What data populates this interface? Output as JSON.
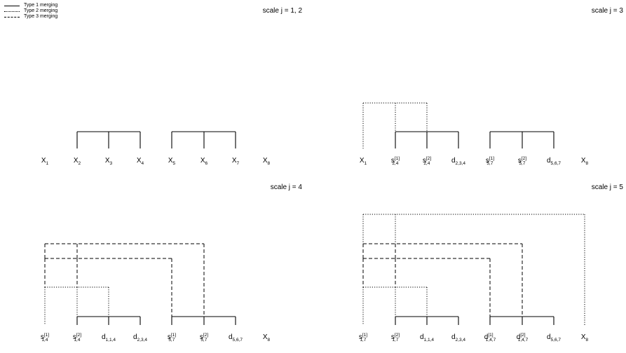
{
  "legend": {
    "items": [
      {
        "label": "Type 1 merging",
        "style": "solid"
      },
      {
        "label": "Type 2 merging",
        "style": "dotted"
      },
      {
        "label": "Type 3 merging",
        "style": "dashed"
      }
    ]
  },
  "panels": [
    {
      "title": "scale j = 1, 2",
      "leaves": [
        {
          "base": "X",
          "sub": "1",
          "sup": ""
        },
        {
          "base": "X",
          "sub": "2",
          "sup": ""
        },
        {
          "base": "X",
          "sub": "3",
          "sup": ""
        },
        {
          "base": "X",
          "sub": "4",
          "sup": ""
        },
        {
          "base": "X",
          "sub": "5",
          "sup": ""
        },
        {
          "base": "X",
          "sub": "6",
          "sup": ""
        },
        {
          "base": "X",
          "sub": "7",
          "sup": ""
        },
        {
          "base": "X",
          "sub": "8",
          "sup": ""
        }
      ]
    },
    {
      "title": "scale j = 3",
      "leaves": [
        {
          "base": "X",
          "sub": "1",
          "sup": ""
        },
        {
          "base": "s",
          "sub": "2,4",
          "sup": "[1]"
        },
        {
          "base": "s",
          "sub": "2,4",
          "sup": "[2]"
        },
        {
          "base": "d",
          "sub": "2,3,4",
          "sup": ""
        },
        {
          "base": "s",
          "sub": "5,7",
          "sup": "[1]"
        },
        {
          "base": "s",
          "sub": "5,7",
          "sup": "[2]"
        },
        {
          "base": "d",
          "sub": "5,6,7",
          "sup": ""
        },
        {
          "base": "X",
          "sub": "8",
          "sup": ""
        }
      ]
    },
    {
      "title": "scale j = 4",
      "leaves": [
        {
          "base": "s",
          "sub": "1,4",
          "sup": "[1]"
        },
        {
          "base": "s",
          "sub": "1,4",
          "sup": "[2]"
        },
        {
          "base": "d",
          "sub": "1,1,4",
          "sup": ""
        },
        {
          "base": "d",
          "sub": "2,3,4",
          "sup": ""
        },
        {
          "base": "s",
          "sub": "5,7",
          "sup": "[1]"
        },
        {
          "base": "s",
          "sub": "5,7",
          "sup": "[2]"
        },
        {
          "base": "d",
          "sub": "5,6,7",
          "sup": ""
        },
        {
          "base": "X",
          "sub": "8",
          "sup": ""
        }
      ]
    },
    {
      "title": "scale j = 5",
      "leaves": [
        {
          "base": "s",
          "sub": "1,7",
          "sup": "[1]"
        },
        {
          "base": "s",
          "sub": "1,7",
          "sup": "[2]"
        },
        {
          "base": "d",
          "sub": "1,1,4",
          "sup": ""
        },
        {
          "base": "d",
          "sub": "2,3,4",
          "sup": ""
        },
        {
          "base": "d",
          "sub": "1,4,7",
          "sup": "[1]"
        },
        {
          "base": "d",
          "sub": "1,4,7",
          "sup": "[2]"
        },
        {
          "base": "d",
          "sub": "5,6,7",
          "sup": ""
        },
        {
          "base": "X",
          "sub": "8",
          "sup": ""
        }
      ]
    }
  ]
}
